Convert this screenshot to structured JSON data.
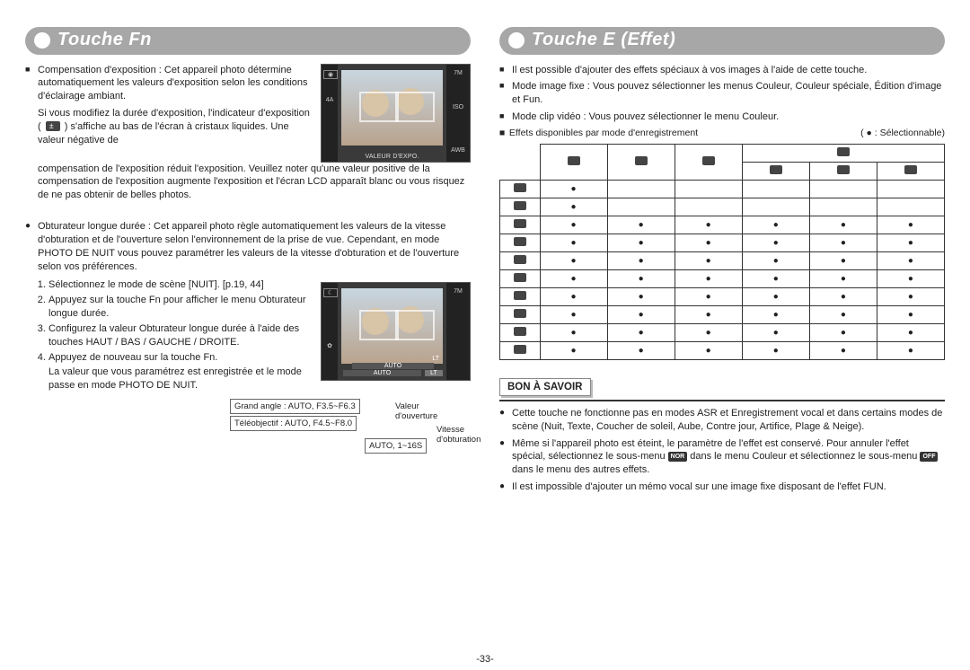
{
  "page_number": "-33-",
  "left": {
    "title": "Touche Fn",
    "sec1": {
      "bullet_label": "Compensation d'exposition",
      "bullet_text": " : Cet appareil photo détermine automatiquement les valeurs d'exposition selon les conditions d'éclairage ambiant.",
      "cont_a": "Si vous modifiez la durée d'exposition, l'indicateur d'exposition (",
      "cont_b": ") s'affiche au bas de l'écran à cristaux liquides. Une valeur négative de",
      "cont_c": "compensation de l'exposition réduit l'exposition. Veuillez noter qu'une valeur positive de la compensation de l'exposition augmente l'exposition et l'écran LCD apparaît blanc ou vous risquez de ne pas obtenir de belles photos.",
      "lcd_caption": "VALEUR D'EXPO.",
      "lcd_r1": "7M",
      "lcd_r2": "ISO",
      "lcd_r3": "AWB",
      "lcd_l2": "4A"
    },
    "sec2": {
      "bullet": "Obturateur longue durée : Cet appareil photo règle automatiquement les valeurs de la vitesse d'obturation et de l'ouverture selon l'environnement de la prise de vue. Cependant, en mode PHOTO DE NUIT vous pouvez paramétrer les valeurs de la vitesse d'obturation et de l'ouverture selon vos préférences.",
      "steps": [
        "Sélectionnez le mode de scène [NUIT]. [p.19, 44]",
        "Appuyez sur la touche Fn pour afficher le menu Obturateur longue durée.",
        "Configurez la valeur Obturateur longue durée à l'aide des touches HAUT / BAS / GAUCHE / DROITE.",
        "Appuyez de nouveau sur la touche Fn."
      ],
      "after_steps_a": "La valeur que vous paramétrez est enregistrée et le mode passe en mode PHOTO DE NUIT.",
      "lcd_caption": "LT",
      "lcd_auto1": "AUTO",
      "lcd_auto2": "AUTO",
      "spec_wide": "Grand angle : AUTO, F3.5~F6.3",
      "spec_tele": "Téléobjectif : AUTO, F4.5~F8.0",
      "spec_shutter": "AUTO, 1~16S",
      "label_aperture": "Valeur d'ouverture",
      "label_shutter": "Vitesse d'obturation"
    }
  },
  "right": {
    "title": "Touche E (Effet)",
    "intro": [
      "Il est possible d'ajouter des effets spéciaux à vos images à l'aide de cette touche.",
      "Mode image fixe : Vous pouvez sélectionner les menus Couleur, Couleur spéciale, Édition d'image et Fun.",
      "Mode clip vidéo : Vous pouvez sélectionner le menu Couleur."
    ],
    "legend_left": "Effets disponibles par mode d'enregistrement",
    "legend_right": "( ● : Sélectionnable)",
    "table": {
      "top_group_cols": 4,
      "top_group_span": 3,
      "rows": [
        [
          "●",
          "",
          "",
          "",
          "",
          ""
        ],
        [
          "●",
          "",
          "",
          "",
          "",
          ""
        ],
        [
          "●",
          "●",
          "●",
          "●",
          "●",
          "●"
        ],
        [
          "●",
          "●",
          "●",
          "●",
          "●",
          "●"
        ],
        [
          "●",
          "●",
          "●",
          "●",
          "●",
          "●"
        ],
        [
          "●",
          "●",
          "●",
          "●",
          "●",
          "●"
        ],
        [
          "●",
          "●",
          "●",
          "●",
          "●",
          "●"
        ],
        [
          "●",
          "●",
          "●",
          "●",
          "●",
          "●"
        ],
        [
          "●",
          "●",
          "●",
          "●",
          "●",
          "●"
        ],
        [
          "●",
          "●",
          "●",
          "●",
          "●",
          "●"
        ]
      ]
    },
    "info_title": "BON À SAVOIR",
    "info_items": [
      "Cette touche ne fonctionne pas en modes ASR et Enregistrement vocal et dans certains modes de scène (Nuit, Texte, Coucher de soleil, Aube, Contre jour, Artifice, Plage & Neige).",
      "Même si l'appareil photo est éteint, le paramètre de l'effet est conservé. Pour annuler l'effet spécial, sélectionnez le sous-menu  NOR  dans le menu Couleur et sélectionnez le sous-menu  OFF  dans le menu des autres effets.",
      "Il est impossible d'ajouter un mémo vocal sur une image fixe disposant de l'effet FUN."
    ]
  }
}
